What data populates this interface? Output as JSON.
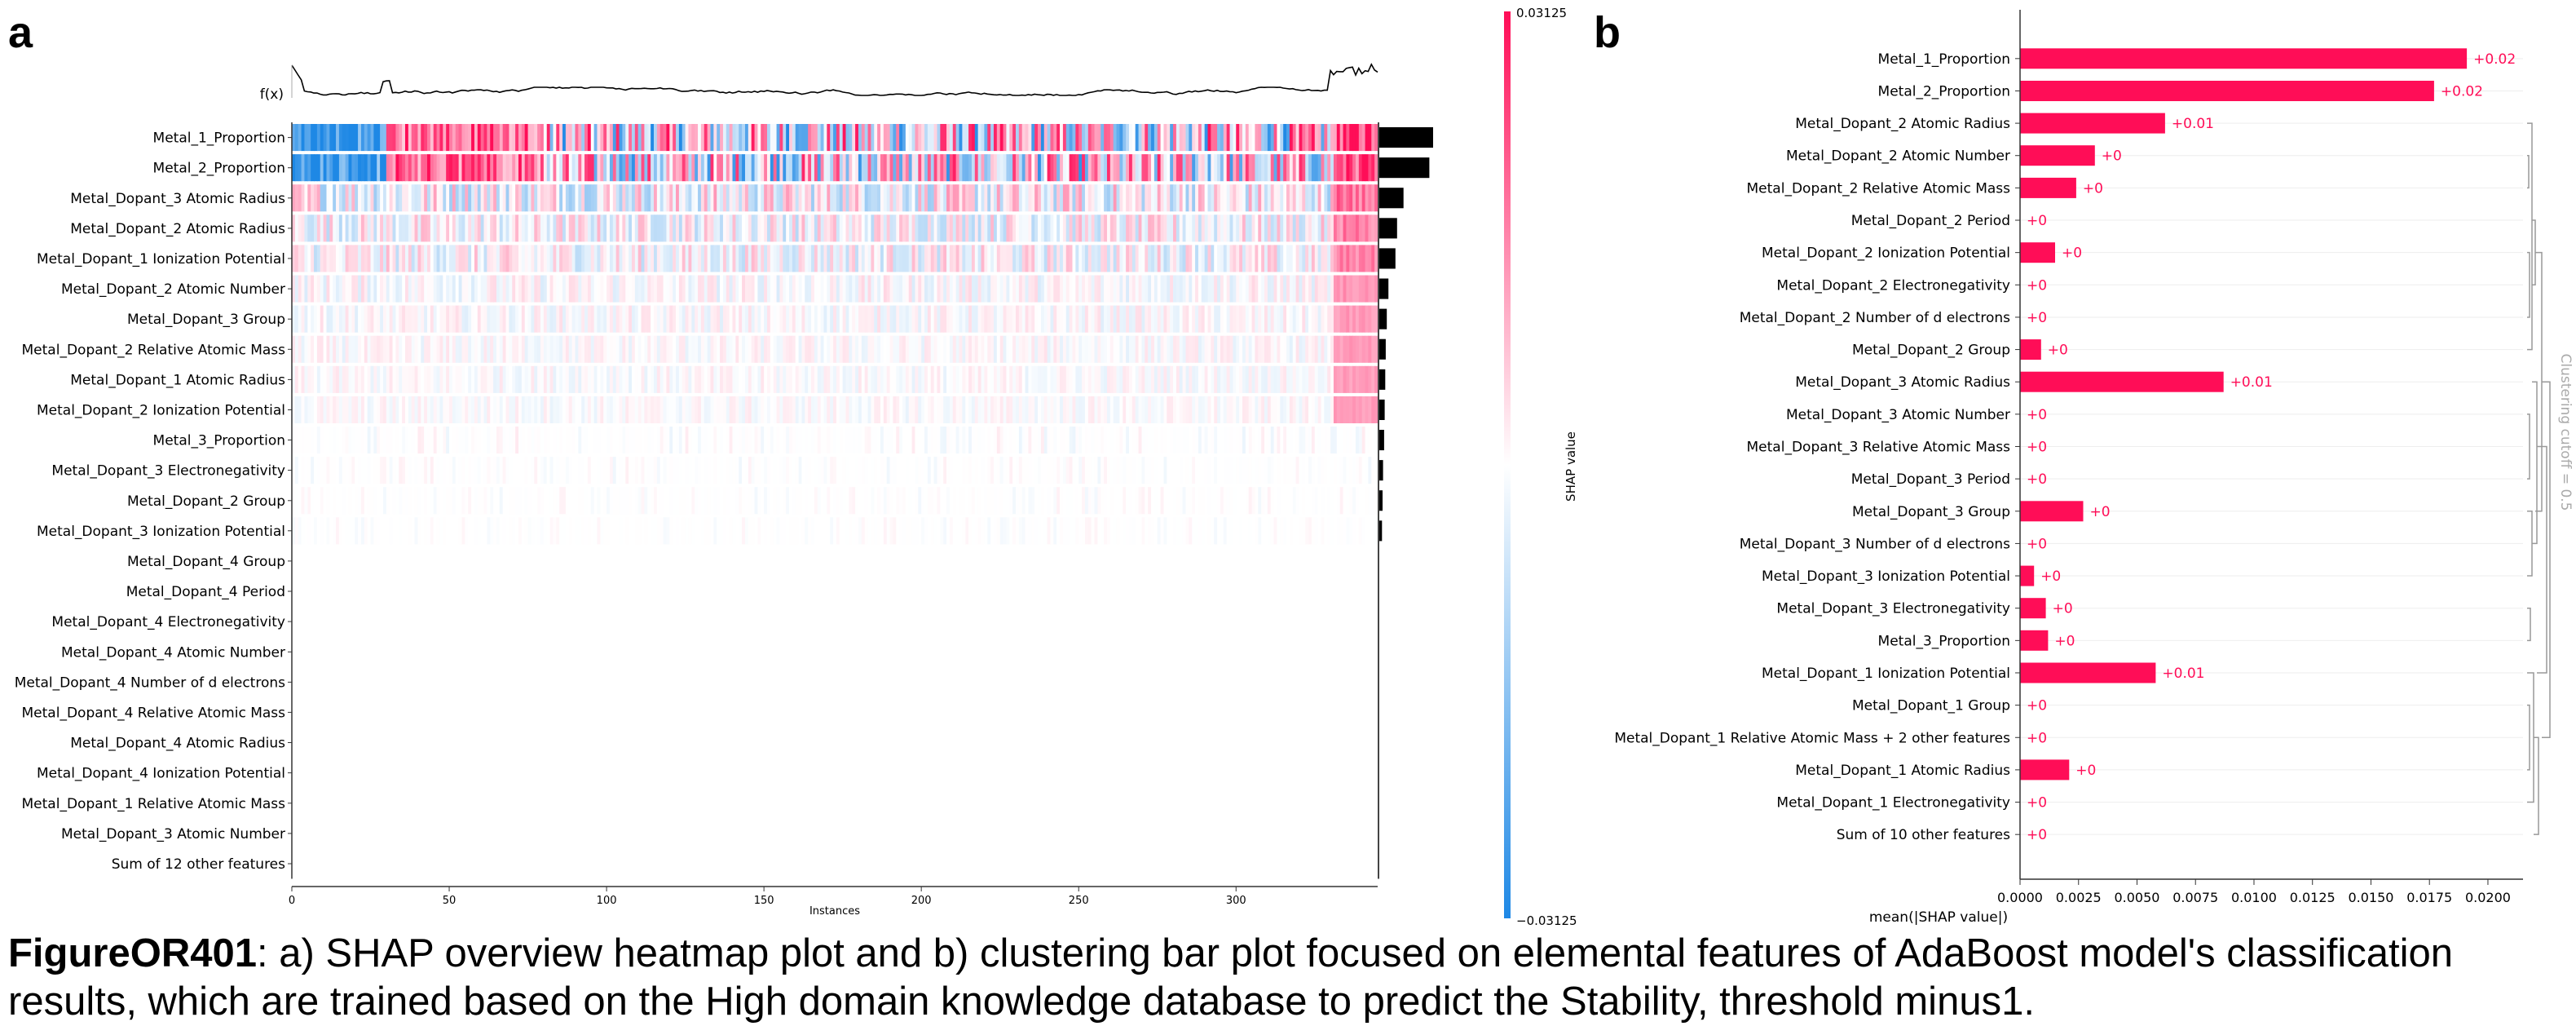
{
  "panel_labels": {
    "a": "a",
    "b": "b"
  },
  "colors": {
    "positive": "#ff0d57",
    "negative": "#1e88e5",
    "neutral": "#ffffff",
    "bar_black": "#000000",
    "dendro": "#999999"
  },
  "caption": {
    "figure_id": "FigureOR401",
    "text": ": a) SHAP overview heatmap plot and b) clustering bar plot focused on elemental features of AdaBoost model's classification results, which are trained based on the High domain knowledge database to predict the Stability, threshold minus1."
  },
  "chart_data": [
    {
      "type": "heatmap",
      "title": "",
      "fx_label": "f(x)",
      "xlabel": "Instances",
      "xlim": [
        0,
        345
      ],
      "xticks": [
        "0",
        "50",
        "100",
        "150",
        "200",
        "250",
        "300"
      ],
      "colorbar": {
        "label": "SHAP value",
        "max_label": "0.03125",
        "min_label": "−0.03125",
        "vmin": -0.03125,
        "vmax": 0.03125
      },
      "features": [
        {
          "name": "Metal_1_Proportion",
          "importance": 1.0
        },
        {
          "name": "Metal_2_Proportion",
          "importance": 0.93
        },
        {
          "name": "Metal_Dopant_3 Atomic Radius",
          "importance": 0.45
        },
        {
          "name": "Metal_Dopant_2 Atomic Radius",
          "importance": 0.33
        },
        {
          "name": "Metal_Dopant_1 Ionization Potential",
          "importance": 0.3
        },
        {
          "name": "Metal_Dopant_2 Atomic Number",
          "importance": 0.17
        },
        {
          "name": "Metal_Dopant_3 Group",
          "importance": 0.14
        },
        {
          "name": "Metal_Dopant_2 Relative Atomic Mass",
          "importance": 0.12
        },
        {
          "name": "Metal_Dopant_1 Atomic Radius",
          "importance": 0.11
        },
        {
          "name": "Metal_Dopant_2 Ionization Potential",
          "importance": 0.1
        },
        {
          "name": "Metal_3_Proportion",
          "importance": 0.09
        },
        {
          "name": "Metal_Dopant_3 Electronegativity",
          "importance": 0.07
        },
        {
          "name": "Metal_Dopant_2 Group",
          "importance": 0.06
        },
        {
          "name": "Metal_Dopant_3 Ionization Potential",
          "importance": 0.05
        },
        {
          "name": "Metal_Dopant_4 Group",
          "importance": 0
        },
        {
          "name": "Metal_Dopant_4 Period",
          "importance": 0
        },
        {
          "name": "Metal_Dopant_4 Electronegativity",
          "importance": 0
        },
        {
          "name": "Metal_Dopant_4 Atomic Number",
          "importance": 0
        },
        {
          "name": "Metal_Dopant_4 Number of d electrons",
          "importance": 0
        },
        {
          "name": "Metal_Dopant_4 Relative Atomic Mass",
          "importance": 0
        },
        {
          "name": "Metal_Dopant_4 Atomic Radius",
          "importance": 0
        },
        {
          "name": "Metal_Dopant_4 Ionization Potential",
          "importance": 0
        },
        {
          "name": "Metal_Dopant_1 Relative Atomic Mass",
          "importance": 0
        },
        {
          "name": "Metal_Dopant_3 Atomic Number",
          "importance": 0
        },
        {
          "name": "Sum of 12 other features",
          "importance": 0
        }
      ]
    },
    {
      "type": "bar",
      "orientation": "horizontal",
      "xlabel": "mean(|SHAP value|)",
      "xlim": [
        0,
        0.0215
      ],
      "xticks": [
        "0.0000",
        "0.0025",
        "0.0050",
        "0.0075",
        "0.0100",
        "0.0125",
        "0.0150",
        "0.0175",
        "0.0200"
      ],
      "clustering_label": "Clustering cutoff = 0.5",
      "categories": [
        "Metal_1_Proportion",
        "Metal_2_Proportion",
        "Metal_Dopant_2 Atomic Radius",
        "Metal_Dopant_2 Atomic Number",
        "Metal_Dopant_2 Relative Atomic Mass",
        "Metal_Dopant_2 Period",
        "Metal_Dopant_2 Ionization Potential",
        "Metal_Dopant_2 Electronegativity",
        "Metal_Dopant_2 Number of d electrons",
        "Metal_Dopant_2 Group",
        "Metal_Dopant_3 Atomic Radius",
        "Metal_Dopant_3 Atomic Number",
        "Metal_Dopant_3 Relative Atomic Mass",
        "Metal_Dopant_3 Period",
        "Metal_Dopant_3 Group",
        "Metal_Dopant_3 Number of d electrons",
        "Metal_Dopant_3 Ionization Potential",
        "Metal_Dopant_3 Electronegativity",
        "Metal_3_Proportion",
        "Metal_Dopant_1 Ionization Potential",
        "Metal_Dopant_1 Group",
        "Metal_Dopant_1 Relative Atomic Mass + 2 other features",
        "Metal_Dopant_1 Atomic Radius",
        "Metal_Dopant_1 Electronegativity",
        "Sum of 10 other features"
      ],
      "values": [
        0.0191,
        0.0177,
        0.0062,
        0.0032,
        0.0024,
        0,
        0.0015,
        0,
        0,
        0.0009,
        0.0087,
        0,
        0,
        0,
        0.0027,
        0,
        0.0006,
        0.0011,
        0.0012,
        0.0058,
        0,
        0,
        0.0021,
        0,
        0
      ],
      "value_labels": [
        "+0.02",
        "+0.02",
        "+0.01",
        "+0",
        "+0",
        "+0",
        "+0",
        "+0",
        "+0",
        "+0",
        "+0.01",
        "+0",
        "+0",
        "+0",
        "+0",
        "+0",
        "+0",
        "+0",
        "+0",
        "+0.01",
        "+0",
        "+0",
        "+0",
        "+0",
        "+0"
      ]
    }
  ]
}
